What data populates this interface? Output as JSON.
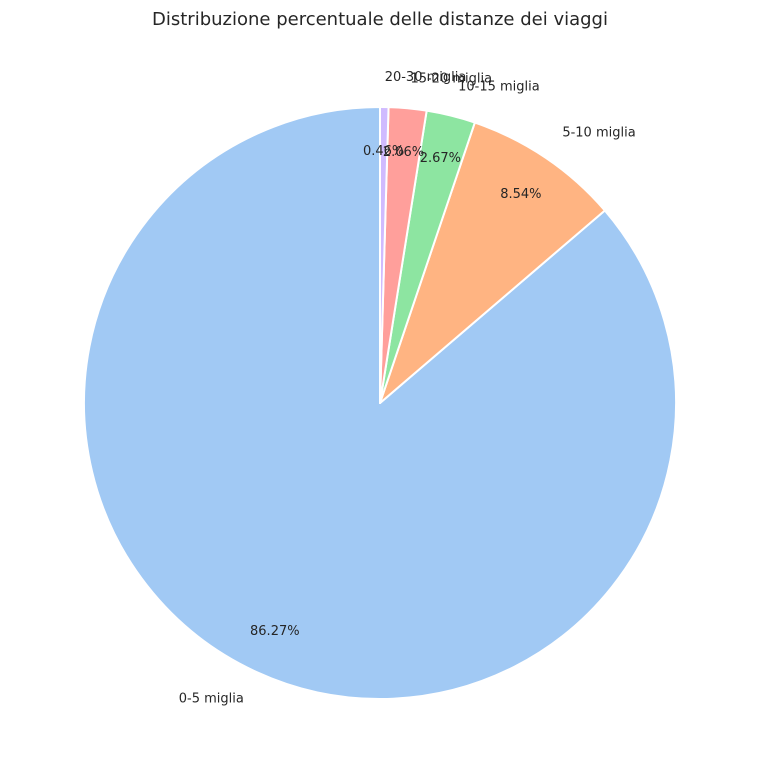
{
  "chart_data": {
    "type": "pie",
    "title": "Distribuzione percentuale delle distanze dei viaggi",
    "start_angle_deg": 90,
    "direction": "counterclockwise",
    "slices": [
      {
        "label": "0-5 miglia",
        "value": 86.27,
        "pct_label": "86.27%",
        "color": "#a1c9f4"
      },
      {
        "label": "5-10 miglia",
        "value": 8.54,
        "pct_label": "8.54%",
        "color": "#ffb482"
      },
      {
        "label": "10-15 miglia",
        "value": 2.67,
        "pct_label": "2.67%",
        "color": "#8de5a1"
      },
      {
        "label": "15-20 miglia",
        "value": 2.06,
        "pct_label": "2.06%",
        "color": "#ff9f9b"
      },
      {
        "label": "20-30 miglia",
        "value": 0.46,
        "pct_label": "0.46%",
        "color": "#d0bbff"
      }
    ]
  }
}
